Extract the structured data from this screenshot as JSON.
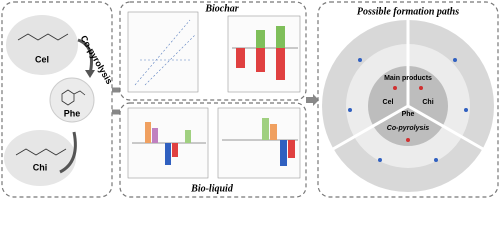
{
  "left_panel": {
    "cellulose": "Cel",
    "process": "Co-pyrolysis",
    "phenylalanine": "Phe",
    "chitin": "Chi"
  },
  "middle_panel": {
    "top_title": "Biochar",
    "bottom_title": "Bio-liquid"
  },
  "right_panel": {
    "title": "Possible formation paths",
    "main_products": "Main products",
    "center": "Co-pyrolysis",
    "cel": "Cel",
    "chi": "Chi",
    "phe": "Phe"
  }
}
